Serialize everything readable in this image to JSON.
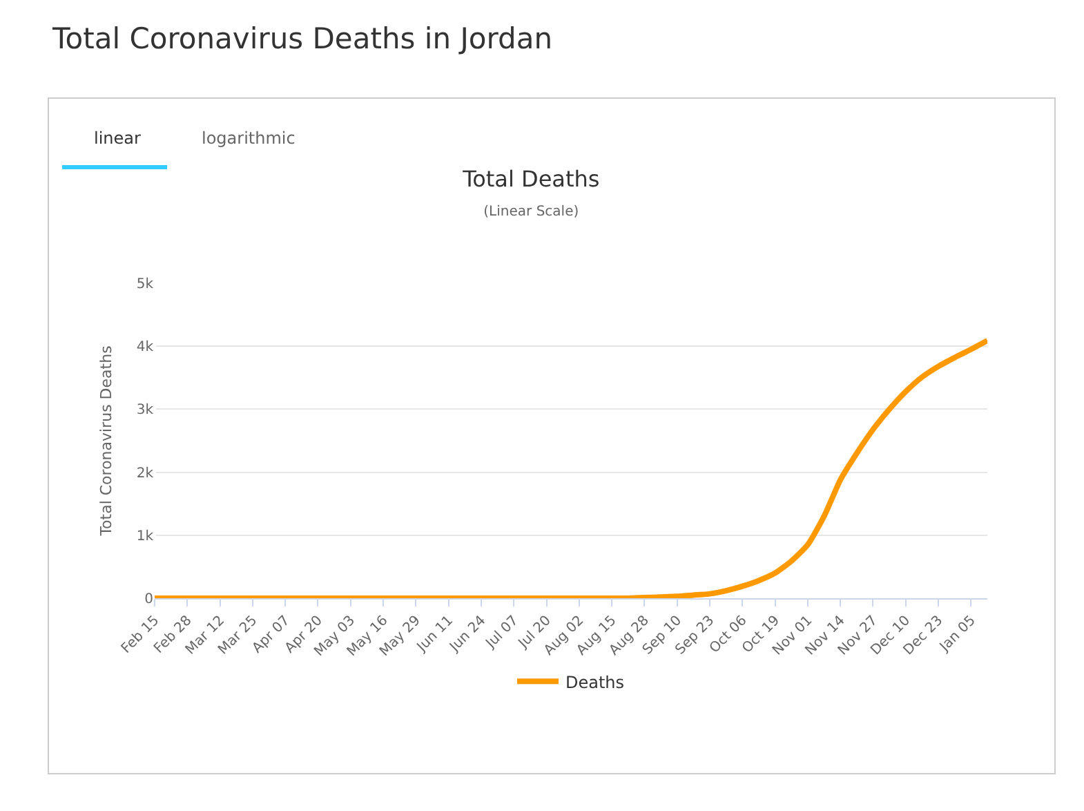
{
  "chart_data": {
    "type": "line",
    "title": "Total Deaths",
    "subtitle": "(Linear Scale)",
    "ylabel": "Total Coronavirus Deaths",
    "annotations": [
      "Total Coronavirus Deaths in Jordan",
      "linear",
      "logarithmic"
    ],
    "categories": [
      "Feb 15",
      null,
      "Feb 28",
      null,
      "Mar 12",
      null,
      "Mar 25",
      null,
      "Apr 07",
      null,
      "Apr 20",
      null,
      "May 03",
      null,
      "May 16",
      null,
      "May 29",
      null,
      "Jun 11",
      null,
      "Jun 24",
      null,
      "Jul 07",
      null,
      "Jul 20",
      null,
      "Aug 02",
      null,
      "Aug 15",
      null,
      "Aug 28",
      null,
      "Sep 10",
      null,
      "Sep 23",
      null,
      "Oct 06",
      null,
      "Oct 19",
      null,
      "Nov 01",
      null,
      "Nov 14",
      null,
      "Nov 27",
      null,
      "Dec 10",
      null,
      "Dec 23",
      null,
      "Jan 05",
      null
    ],
    "series": [
      {
        "name": "Deaths",
        "color": "#ff9900",
        "values": [
          0,
          0,
          0,
          0,
          0,
          0,
          0,
          0,
          0,
          0,
          0,
          0,
          0,
          0,
          0,
          0,
          0,
          0,
          0,
          0,
          0,
          0,
          0,
          0,
          0,
          0,
          0,
          0,
          0,
          0,
          10,
          20,
          30,
          50,
          70,
          120,
          190,
          280,
          400,
          590,
          850,
          1300,
          1880,
          2300,
          2680,
          3000,
          3280,
          3510,
          3680,
          3820,
          3950,
          4090
        ]
      }
    ],
    "ylim": [
      0,
      5000
    ],
    "yticks": [
      0,
      {
        "value": 1000,
        "label": "1k"
      },
      {
        "value": 2000,
        "label": "2k"
      },
      {
        "value": 3000,
        "label": "3k"
      },
      {
        "value": 4000,
        "label": "4k"
      },
      {
        "value": 5000,
        "label": "5k"
      }
    ],
    "grid": "y",
    "legend": "bottom",
    "marker": "none",
    "line_style": "solid"
  }
}
